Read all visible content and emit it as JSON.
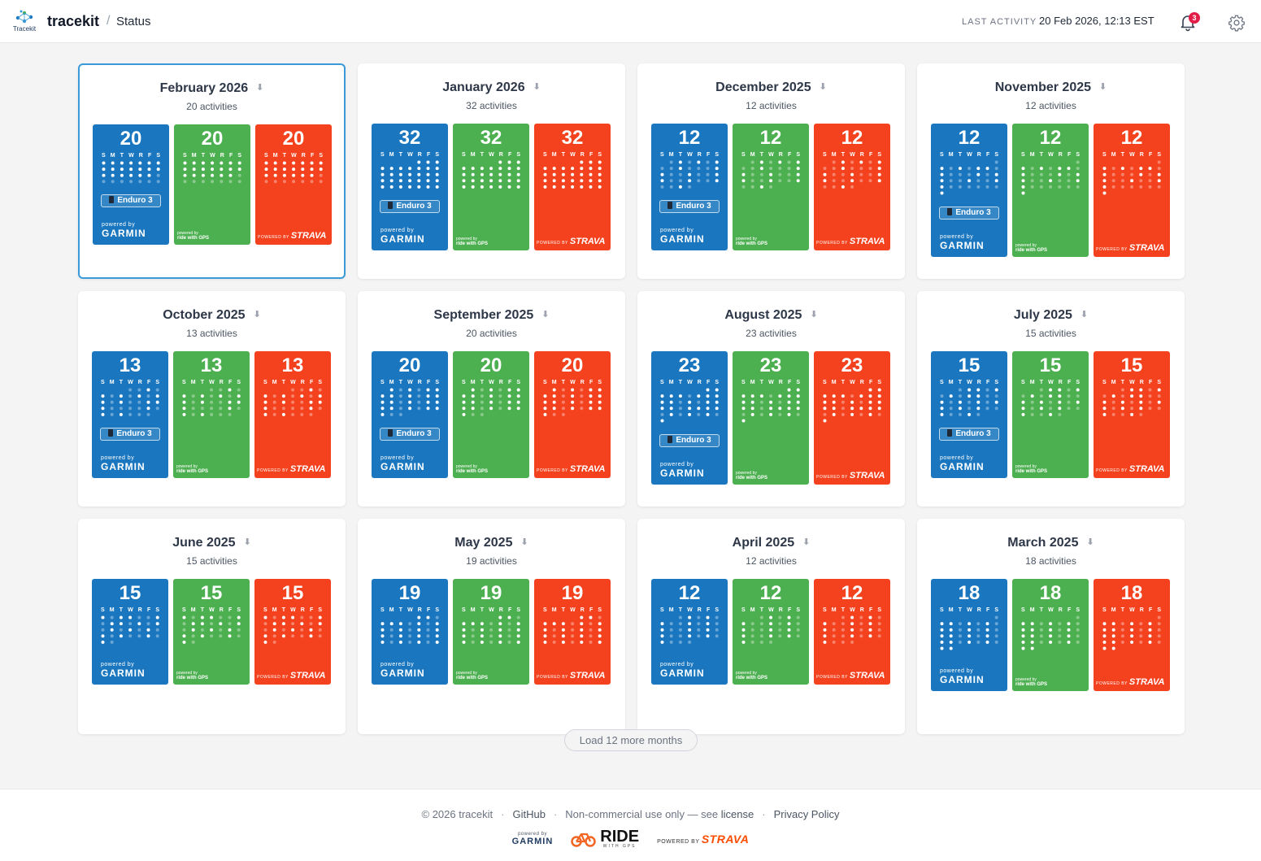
{
  "header": {
    "logo_text": "Tracekit",
    "brand": "tracekit",
    "breadcrumb_sep": "/",
    "page": "Status",
    "last_activity_label": "LAST ACTIVITY",
    "last_activity_value": "20 Feb 2026, 12:13 EST",
    "notification_count": "3"
  },
  "weekdays": [
    "S",
    "M",
    "T",
    "W",
    "R",
    "F",
    "S"
  ],
  "powered": {
    "garmin_small": "powered by",
    "garmin_big": "GARMIN",
    "rwgps_small": "powered by",
    "rwgps_big": "ride with GPS",
    "strava_small": "POWERED BY",
    "strava_big": "STRAVA"
  },
  "download_icon": "download-arrow-icon",
  "months": [
    {
      "title": "February 2026",
      "subtitle": "20 activities",
      "count": "20",
      "device": "Enduro 3",
      "selected": true,
      "start": 0,
      "days": 28,
      "active": [
        1,
        2,
        3,
        4,
        5,
        6,
        7,
        8,
        9,
        10,
        11,
        12,
        13,
        14,
        15,
        16,
        17,
        18,
        19,
        20
      ]
    },
    {
      "title": "January 2026",
      "subtitle": "32 activities",
      "count": "32",
      "device": "Enduro 3",
      "selected": false,
      "start": 4,
      "days": 31,
      "active": [
        1,
        2,
        3,
        4,
        5,
        6,
        7,
        8,
        9,
        10,
        11,
        12,
        13,
        14,
        15,
        16,
        17,
        18,
        19,
        20,
        21,
        22,
        23,
        24,
        25,
        26,
        27,
        28,
        29,
        30,
        31
      ]
    },
    {
      "title": "December 2025",
      "subtitle": "12 activities",
      "count": "12",
      "device": "Enduro 3",
      "selected": false,
      "start": 1,
      "days": 31,
      "active": [
        2,
        4,
        6,
        9,
        13,
        14,
        17,
        20,
        21,
        24,
        27,
        30
      ]
    },
    {
      "title": "November 2025",
      "subtitle": "12 activities",
      "count": "12",
      "device": "Enduro 3",
      "selected": false,
      "start": 6,
      "days": 30,
      "active": [
        2,
        4,
        6,
        7,
        9,
        13,
        15,
        16,
        19,
        22,
        23,
        30
      ]
    },
    {
      "title": "October 2025",
      "subtitle": "13 activities",
      "count": "13",
      "device": "Enduro 3",
      "selected": false,
      "start": 3,
      "days": 31,
      "active": [
        3,
        5,
        7,
        9,
        11,
        12,
        14,
        17,
        18,
        19,
        24,
        26,
        28
      ]
    },
    {
      "title": "September 2025",
      "subtitle": "20 activities",
      "count": "20",
      "device": "Enduro 3",
      "selected": false,
      "start": 1,
      "days": 30,
      "active": [
        1,
        3,
        5,
        6,
        7,
        8,
        10,
        12,
        13,
        14,
        15,
        17,
        19,
        20,
        21,
        22,
        24,
        26,
        27,
        28
      ]
    },
    {
      "title": "August 2025",
      "subtitle": "23 activities",
      "count": "23",
      "device": "Enduro 3",
      "selected": false,
      "start": 5,
      "days": 31,
      "active": [
        1,
        2,
        3,
        4,
        5,
        7,
        8,
        9,
        10,
        11,
        13,
        15,
        16,
        17,
        18,
        20,
        21,
        22,
        23,
        25,
        27,
        29,
        31
      ]
    },
    {
      "title": "July 2025",
      "subtitle": "15 activities",
      "count": "15",
      "device": "Enduro 3",
      "selected": false,
      "start": 2,
      "days": 31,
      "active": [
        2,
        3,
        5,
        7,
        9,
        10,
        13,
        15,
        17,
        19,
        20,
        22,
        24,
        27,
        30
      ]
    },
    {
      "title": "June 2025",
      "subtitle": "15 activities",
      "count": "15",
      "device": "",
      "selected": false,
      "start": 0,
      "days": 30,
      "active": [
        1,
        3,
        4,
        7,
        9,
        10,
        12,
        14,
        16,
        18,
        20,
        22,
        24,
        27,
        29
      ]
    },
    {
      "title": "May 2025",
      "subtitle": "19 activities",
      "count": "19",
      "device": "",
      "selected": false,
      "start": 4,
      "days": 31,
      "active": [
        1,
        2,
        4,
        5,
        6,
        8,
        10,
        11,
        13,
        15,
        17,
        18,
        20,
        22,
        24,
        25,
        27,
        29,
        31
      ]
    },
    {
      "title": "April 2025",
      "subtitle": "12 activities",
      "count": "12",
      "device": "",
      "selected": false,
      "start": 2,
      "days": 30,
      "active": [
        2,
        4,
        6,
        9,
        11,
        13,
        16,
        18,
        20,
        23,
        25,
        27
      ]
    },
    {
      "title": "March 2025",
      "subtitle": "18 activities",
      "count": "18",
      "device": "",
      "selected": false,
      "start": 6,
      "days": 31,
      "active": [
        2,
        3,
        5,
        7,
        9,
        10,
        12,
        14,
        16,
        17,
        19,
        21,
        23,
        24,
        26,
        28,
        30,
        31
      ]
    }
  ],
  "load_more": "Load 12 more months",
  "footer": {
    "copyright": "© 2026 tracekit",
    "github": "GitHub",
    "license_text": "Non-commercial use only — see",
    "license_link": "license",
    "privacy": "Privacy Policy",
    "garmin_small": "powered by",
    "garmin_big": "GARMIN",
    "ride_big": "RIDE",
    "ride_small": "WITH GPS",
    "strava_small": "POWERED BY",
    "strava_big": "STRAVA"
  },
  "colors": {
    "garmin": "#1a77bf",
    "rwgps": "#4caf50",
    "strava": "#f4411e",
    "accent": "#3b9ad9"
  }
}
